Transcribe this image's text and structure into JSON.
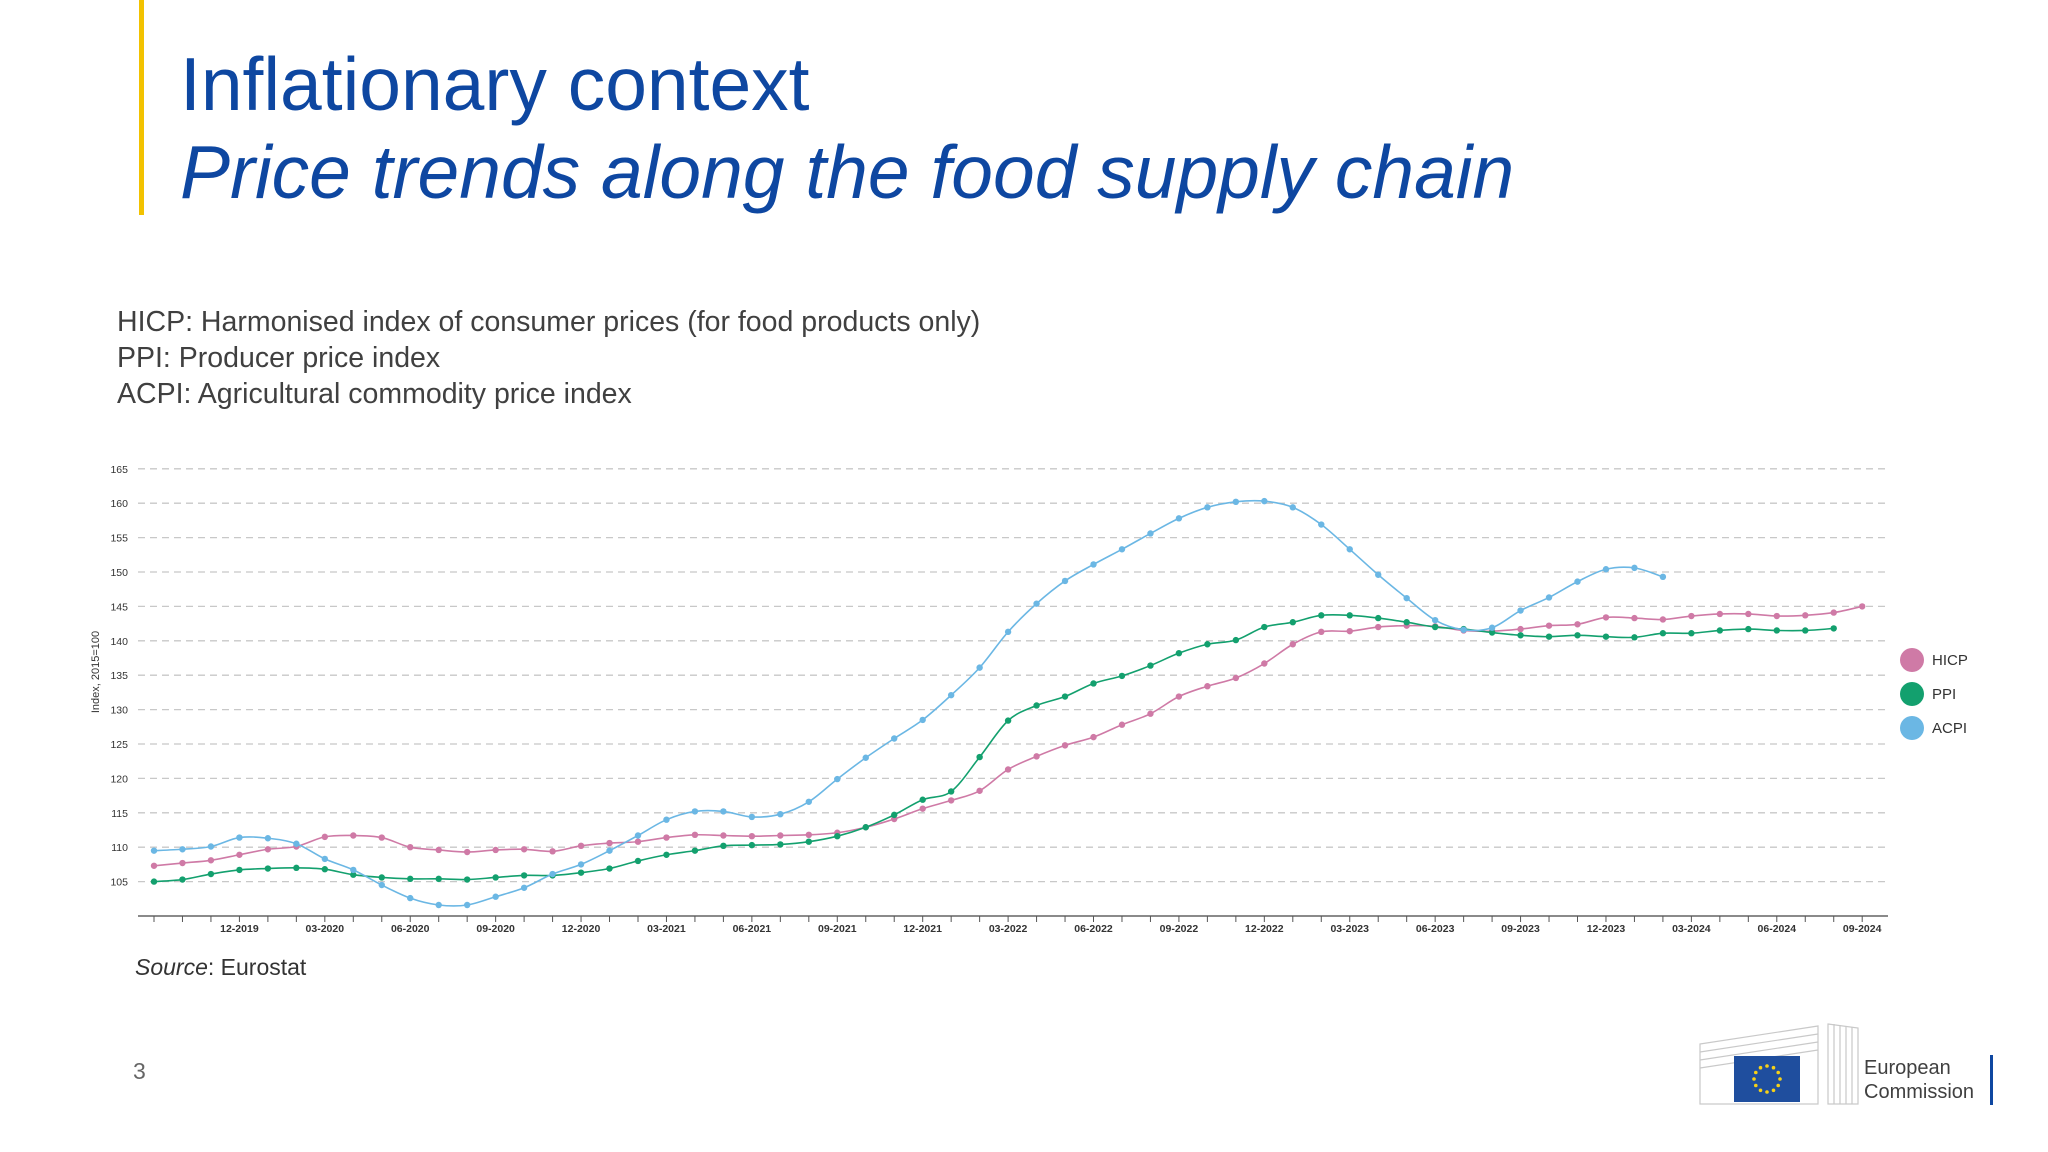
{
  "header": {
    "title": "Inflationary context",
    "subtitle": "Price trends along the food supply chain"
  },
  "definitions": [
    "HICP: Harmonised index of consumer prices (for food products only)",
    "PPI: Producer price index",
    "ACPI: Agricultural commodity price index"
  ],
  "source": {
    "label": "Source",
    "text": ": Eurostat"
  },
  "page_number": "3",
  "logo": {
    "line1": "European",
    "line2": "Commission"
  },
  "colors": {
    "accent": "#f2c200",
    "title": "#0e47a1",
    "hicp": "#cf7aa6",
    "ppi": "#13a06e",
    "acpi": "#6bb7e4"
  },
  "chart_data": {
    "type": "line",
    "ylabel": "Index, 2015=100",
    "xlabel": "",
    "ylim": [
      100,
      165
    ],
    "yticks": [
      105,
      110,
      115,
      120,
      125,
      130,
      135,
      140,
      145,
      150,
      155,
      160,
      165
    ],
    "grid": "horizontal-dashed",
    "legend_position": "right",
    "x_start": "09-2019",
    "x_tick_labels": [
      "12-2019",
      "03-2020",
      "06-2020",
      "09-2020",
      "12-2020",
      "03-2021",
      "06-2021",
      "09-2021",
      "12-2021",
      "03-2022",
      "06-2022",
      "09-2022",
      "12-2022",
      "03-2023",
      "06-2023",
      "09-2023",
      "12-2023",
      "03-2024",
      "06-2024",
      "09-2024"
    ],
    "series": [
      {
        "name": "HICP",
        "color": "#cf7aa6",
        "values": [
          107.3,
          107.7,
          108.1,
          108.9,
          109.7,
          110.1,
          111.5,
          111.7,
          111.4,
          110.0,
          109.6,
          109.3,
          109.6,
          109.7,
          109.4,
          110.2,
          110.6,
          110.8,
          111.4,
          111.8,
          111.7,
          111.6,
          111.7,
          111.8,
          112.1,
          112.9,
          114.1,
          115.6,
          116.8,
          118.2,
          121.3,
          123.2,
          124.8,
          126.0,
          127.8,
          129.4,
          131.9,
          133.4,
          134.6,
          136.7,
          139.5,
          141.3,
          141.4,
          142.0,
          142.2,
          142.1,
          141.5,
          141.4,
          141.7,
          142.2,
          142.4,
          143.4,
          143.3,
          143.1,
          143.6,
          143.9,
          143.9,
          143.6,
          143.7,
          144.1,
          145.0
        ]
      },
      {
        "name": "PPI",
        "color": "#13a06e",
        "values": [
          105.0,
          105.3,
          106.1,
          106.7,
          106.9,
          107.0,
          106.8,
          106.0,
          105.6,
          105.4,
          105.4,
          105.3,
          105.6,
          105.9,
          105.9,
          106.3,
          106.9,
          108.0,
          108.9,
          109.5,
          110.2,
          110.3,
          110.4,
          110.8,
          111.6,
          112.9,
          114.7,
          116.9,
          118.1,
          123.1,
          128.4,
          130.6,
          131.9,
          133.8,
          134.9,
          136.4,
          138.2,
          139.5,
          140.1,
          142.0,
          142.7,
          143.7,
          143.7,
          143.3,
          142.7,
          142.0,
          141.7,
          141.2,
          140.8,
          140.6,
          140.8,
          140.6,
          140.5,
          141.1,
          141.1,
          141.5,
          141.7,
          141.5,
          141.5,
          141.8
        ]
      },
      {
        "name": "ACPI",
        "color": "#6bb7e4",
        "values": [
          109.5,
          109.7,
          110.1,
          111.4,
          111.3,
          110.5,
          108.3,
          106.7,
          104.5,
          102.6,
          101.6,
          101.6,
          102.8,
          104.1,
          106.1,
          107.5,
          109.5,
          111.7,
          114.0,
          115.2,
          115.2,
          114.4,
          114.8,
          116.6,
          119.9,
          123.0,
          125.8,
          128.5,
          132.1,
          136.1,
          141.3,
          145.4,
          148.7,
          151.1,
          153.3,
          155.6,
          157.8,
          159.4,
          160.2,
          160.3,
          159.4,
          156.9,
          153.3,
          149.6,
          146.2,
          143.0,
          141.6,
          141.9,
          144.4,
          146.3,
          148.6,
          150.4,
          150.6,
          149.3
        ]
      }
    ]
  }
}
